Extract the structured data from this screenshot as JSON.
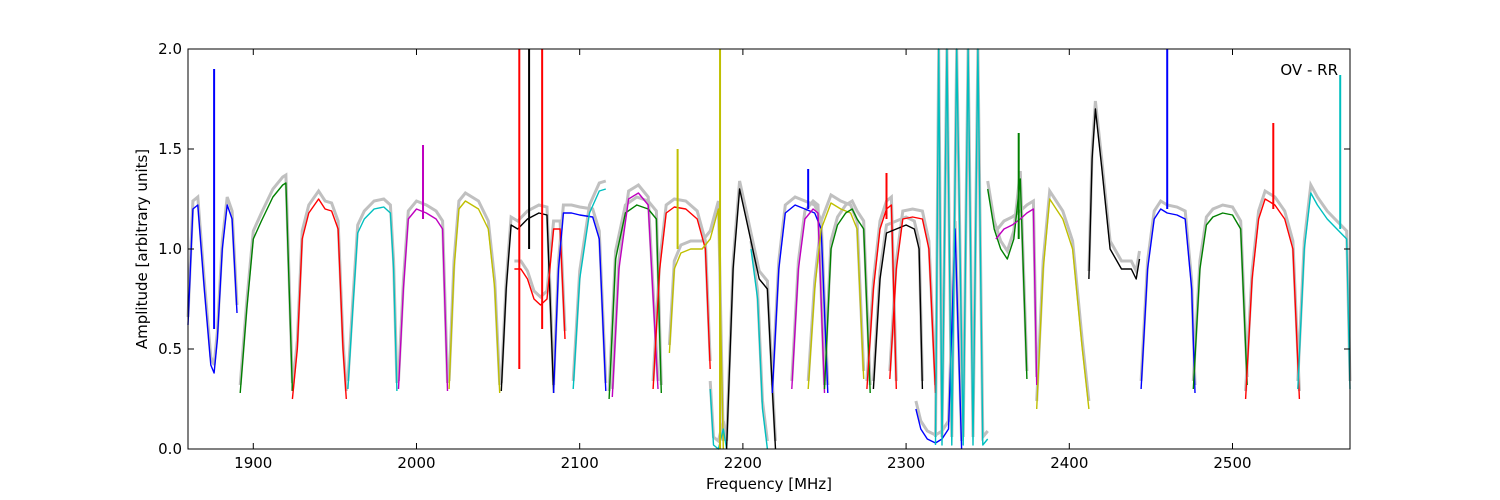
{
  "chart_data": {
    "type": "line",
    "title": "",
    "xlabel": "Frequency [MHz]",
    "ylabel": "Amplitude [arbitrary units]",
    "annotation": "OV - RR",
    "xlim": [
      1860,
      2572
    ],
    "ylim": [
      0.0,
      2.0
    ],
    "x_ticks": [
      1900,
      2000,
      2100,
      2200,
      2300,
      2400,
      2500
    ],
    "x_tick_labels": [
      "1900",
      "2000",
      "2100",
      "2200",
      "2300",
      "2400",
      "2500"
    ],
    "y_ticks": [
      0.0,
      0.5,
      1.0,
      1.5,
      2.0
    ],
    "y_tick_labels": [
      "0.0",
      "0.5",
      "1.0",
      "1.5",
      "2.0"
    ],
    "grid": false,
    "background_series_color": "#c0c0c0",
    "subbands": [
      {
        "color": "#0000ff",
        "x": [
          1860,
          1863,
          1866,
          1870,
          1874,
          1876,
          1878,
          1881,
          1884,
          1887,
          1890
        ],
        "y": [
          0.62,
          1.2,
          1.22,
          0.8,
          0.42,
          0.38,
          0.55,
          1.0,
          1.22,
          1.15,
          0.68
        ]
      },
      {
        "color": "#008000",
        "x": [
          1892,
          1896,
          1900,
          1905,
          1912,
          1918,
          1920,
          1922,
          1924
        ],
        "y": [
          0.28,
          0.7,
          1.05,
          1.14,
          1.26,
          1.32,
          1.33,
          0.8,
          0.29
        ]
      },
      {
        "color": "#ff0000",
        "x": [
          1924,
          1927,
          1930,
          1934,
          1940,
          1944,
          1948,
          1952,
          1955,
          1957
        ],
        "y": [
          0.25,
          0.5,
          1.05,
          1.18,
          1.25,
          1.2,
          1.19,
          1.1,
          0.5,
          0.25
        ]
      },
      {
        "color": "#00bfbf",
        "x": [
          1958,
          1961,
          1964,
          1968,
          1974,
          1980,
          1984,
          1986,
          1988
        ],
        "y": [
          0.3,
          0.7,
          1.08,
          1.15,
          1.2,
          1.21,
          1.18,
          0.9,
          0.29
        ]
      },
      {
        "color": "#bf00bf",
        "x": [
          1989,
          1992,
          1995,
          2000,
          2006,
          2012,
          2016,
          2019
        ],
        "y": [
          0.3,
          0.8,
          1.15,
          1.2,
          1.18,
          1.15,
          1.1,
          0.29
        ]
      },
      {
        "color": "#bfbf00",
        "x": [
          2020,
          2023,
          2026,
          2030,
          2038,
          2044,
          2048,
          2051
        ],
        "y": [
          0.3,
          0.9,
          1.2,
          1.24,
          1.2,
          1.1,
          0.8,
          0.28
        ]
      },
      {
        "color": "#000000",
        "x": [
          2052,
          2055,
          2058,
          2062,
          2068,
          2075,
          2080,
          2084
        ],
        "y": [
          0.29,
          0.8,
          1.12,
          1.1,
          1.15,
          1.18,
          1.17,
          0.28
        ]
      },
      {
        "color": "#ff0000",
        "x": [
          2060,
          2064,
          2068,
          2072,
          2076,
          2080,
          2084,
          2088,
          2091
        ],
        "y": [
          0.9,
          0.9,
          0.85,
          0.75,
          0.72,
          0.75,
          1.1,
          1.1,
          0.55
        ]
      },
      {
        "color": "#0000ff",
        "x": [
          2084,
          2087,
          2090,
          2095,
          2100,
          2108,
          2112,
          2116
        ],
        "y": [
          0.28,
          0.9,
          1.18,
          1.18,
          1.17,
          1.16,
          1.05,
          0.29
        ]
      },
      {
        "color": "#00bfbf",
        "x": [
          2096,
          2100,
          2106,
          2112,
          2116
        ],
        "y": [
          0.3,
          0.85,
          1.18,
          1.29,
          1.3
        ]
      },
      {
        "color": "#008000",
        "x": [
          2118,
          2122,
          2128,
          2135,
          2142,
          2147,
          2150
        ],
        "y": [
          0.25,
          0.95,
          1.18,
          1.22,
          1.2,
          1.15,
          0.28
        ]
      },
      {
        "color": "#bf00bf",
        "x": [
          2120,
          2124,
          2130,
          2136,
          2142,
          2148
        ],
        "y": [
          0.26,
          0.9,
          1.25,
          1.28,
          1.22,
          0.3
        ]
      },
      {
        "color": "#ff0000",
        "x": [
          2145,
          2149,
          2153,
          2158,
          2165,
          2172,
          2177,
          2180
        ],
        "y": [
          0.3,
          0.9,
          1.18,
          1.21,
          1.2,
          1.15,
          1.0,
          0.4
        ]
      },
      {
        "color": "#bfbf00",
        "x": [
          2155,
          2158,
          2162,
          2168,
          2175,
          2180,
          2185,
          2188
        ],
        "y": [
          0.48,
          0.9,
          0.98,
          1.0,
          1.0,
          1.05,
          1.2,
          0.0
        ]
      },
      {
        "color": "#00bfbf",
        "x": [
          2180,
          2182,
          2185,
          2188,
          2190
        ],
        "y": [
          0.3,
          0.02,
          0.0,
          0.1,
          0.0
        ]
      },
      {
        "color": "#000000",
        "x": [
          2190,
          2194,
          2198,
          2202,
          2206,
          2210,
          2215,
          2218,
          2220
        ],
        "y": [
          0.0,
          0.9,
          1.3,
          1.15,
          1.0,
          0.85,
          0.8,
          0.3,
          0.0
        ]
      },
      {
        "color": "#00bfbf",
        "x": [
          2205,
          2209,
          2212,
          2215
        ],
        "y": [
          1.0,
          0.75,
          0.2,
          0.0
        ]
      },
      {
        "color": "#0000ff",
        "x": [
          2218,
          2222,
          2226,
          2232,
          2238,
          2244,
          2248,
          2252
        ],
        "y": [
          0.28,
          0.9,
          1.18,
          1.22,
          1.2,
          1.18,
          1.1,
          0.28
        ]
      },
      {
        "color": "#bf00bf",
        "x": [
          2230,
          2234,
          2238,
          2243,
          2246,
          2250
        ],
        "y": [
          0.3,
          0.9,
          1.15,
          1.2,
          1.18,
          0.28
        ]
      },
      {
        "color": "#bfbf00",
        "x": [
          2240,
          2244,
          2248,
          2254,
          2260,
          2266,
          2270,
          2274
        ],
        "y": [
          0.3,
          0.8,
          1.1,
          1.23,
          1.2,
          1.18,
          1.1,
          0.35
        ]
      },
      {
        "color": "#008000",
        "x": [
          2250,
          2254,
          2258,
          2263,
          2267,
          2270,
          2274,
          2278
        ],
        "y": [
          0.3,
          1.0,
          1.12,
          1.18,
          1.2,
          1.15,
          1.1,
          0.28
        ]
      },
      {
        "color": "#ff0000",
        "x": [
          2276,
          2280,
          2284,
          2288,
          2291,
          2294
        ],
        "y": [
          0.3,
          0.8,
          1.1,
          1.2,
          1.22,
          0.3
        ]
      },
      {
        "color": "#000000",
        "x": [
          2280,
          2284,
          2288,
          2294,
          2300,
          2305,
          2308,
          2310
        ],
        "y": [
          0.3,
          0.85,
          1.08,
          1.1,
          1.12,
          1.1,
          1.0,
          0.3
        ]
      },
      {
        "color": "#ff0000",
        "x": [
          2290,
          2294,
          2298,
          2304,
          2310,
          2314,
          2318
        ],
        "y": [
          0.35,
          0.9,
          1.15,
          1.16,
          1.15,
          1.0,
          0.28
        ]
      },
      {
        "color": "#0000ff",
        "x": [
          2306,
          2309,
          2313,
          2318,
          2322,
          2326,
          2330,
          2334
        ],
        "y": [
          0.2,
          0.1,
          0.05,
          0.03,
          0.05,
          0.1,
          1.1,
          0.0
        ]
      },
      {
        "color": "#00bfbf",
        "x": [
          2318,
          2320,
          2322,
          2325,
          2328,
          2331,
          2335,
          2338,
          2341,
          2344,
          2347,
          2350
        ],
        "y": [
          0.02,
          2.0,
          0.02,
          2.0,
          0.02,
          2.0,
          0.02,
          2.0,
          0.02,
          2.0,
          0.02,
          0.05
        ]
      },
      {
        "color": "#008000",
        "x": [
          2350,
          2354,
          2358,
          2362,
          2366,
          2370,
          2374
        ],
        "y": [
          1.3,
          1.1,
          1.0,
          0.95,
          1.05,
          1.35,
          0.35
        ]
      },
      {
        "color": "#bf00bf",
        "x": [
          2355,
          2360,
          2365,
          2370,
          2374,
          2378,
          2380
        ],
        "y": [
          1.05,
          1.1,
          1.12,
          1.15,
          1.18,
          1.2,
          0.32
        ]
      },
      {
        "color": "#bfbf00",
        "x": [
          2380,
          2384,
          2388,
          2392,
          2396,
          2402,
          2408,
          2412
        ],
        "y": [
          0.2,
          0.9,
          1.25,
          1.2,
          1.15,
          1.0,
          0.5,
          0.2
        ]
      },
      {
        "color": "#000000",
        "x": [
          2412,
          2414,
          2416,
          2420,
          2425,
          2432,
          2438,
          2441,
          2443
        ],
        "y": [
          0.85,
          1.45,
          1.7,
          1.4,
          1.0,
          0.9,
          0.9,
          0.85,
          0.95
        ]
      },
      {
        "color": "#0000ff",
        "x": [
          2444,
          2448,
          2452,
          2456,
          2460,
          2466,
          2471,
          2475,
          2477
        ],
        "y": [
          0.3,
          0.9,
          1.15,
          1.2,
          1.18,
          1.17,
          1.15,
          0.8,
          0.28
        ]
      },
      {
        "color": "#008000",
        "x": [
          2476,
          2480,
          2484,
          2488,
          2494,
          2500,
          2505,
          2509
        ],
        "y": [
          0.3,
          0.9,
          1.12,
          1.16,
          1.18,
          1.17,
          1.1,
          0.32
        ]
      },
      {
        "color": "#ff0000",
        "x": [
          2508,
          2512,
          2516,
          2520,
          2526,
          2532,
          2537,
          2541
        ],
        "y": [
          0.25,
          0.85,
          1.15,
          1.25,
          1.22,
          1.15,
          1.0,
          0.25
        ]
      },
      {
        "color": "#00bfbf",
        "x": [
          2540,
          2544,
          2548,
          2552,
          2558,
          2564,
          2570,
          2572
        ],
        "y": [
          0.3,
          1.0,
          1.28,
          1.22,
          1.15,
          1.1,
          1.05,
          0.3
        ]
      }
    ],
    "spikes": [
      {
        "color": "#0000ff",
        "x": 1876,
        "y0": 0.6,
        "y1": 1.9
      },
      {
        "color": "#ff0000",
        "x": 2063,
        "y0": 0.4,
        "y1": 2.0
      },
      {
        "color": "#000000",
        "x": 2069,
        "y0": 1.0,
        "y1": 2.0
      },
      {
        "color": "#ff0000",
        "x": 2077,
        "y0": 0.6,
        "y1": 2.0
      },
      {
        "color": "#bf00bf",
        "x": 2004,
        "y0": 1.15,
        "y1": 1.52
      },
      {
        "color": "#bfbf00",
        "x": 2160,
        "y0": 1.0,
        "y1": 1.5
      },
      {
        "color": "#bfbf00",
        "x": 2186,
        "y0": 0.0,
        "y1": 2.0
      },
      {
        "color": "#0000ff",
        "x": 2240,
        "y0": 1.2,
        "y1": 1.4
      },
      {
        "color": "#ff0000",
        "x": 2288,
        "y0": 1.15,
        "y1": 1.38
      },
      {
        "color": "#008000",
        "x": 2369,
        "y0": 1.05,
        "y1": 1.58
      },
      {
        "color": "#0000ff",
        "x": 2460,
        "y0": 1.2,
        "y1": 2.0
      },
      {
        "color": "#ff0000",
        "x": 2525,
        "y0": 1.2,
        "y1": 1.63
      },
      {
        "color": "#00bfbf",
        "x": 2566,
        "y0": 1.1,
        "y1": 1.87
      }
    ]
  }
}
